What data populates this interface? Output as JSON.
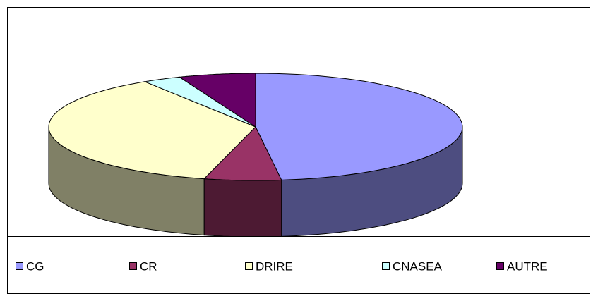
{
  "chart_data": {
    "type": "pie",
    "categories": [
      "CG",
      "CR",
      "DRIRE",
      "CNASEA",
      "AUTRE"
    ],
    "values": [
      48,
      6,
      37,
      3,
      6
    ],
    "colors": [
      "#9999ff",
      "#993366",
      "#ffffcc",
      "#ccffff",
      "#660066"
    ],
    "legend": "bottom"
  }
}
